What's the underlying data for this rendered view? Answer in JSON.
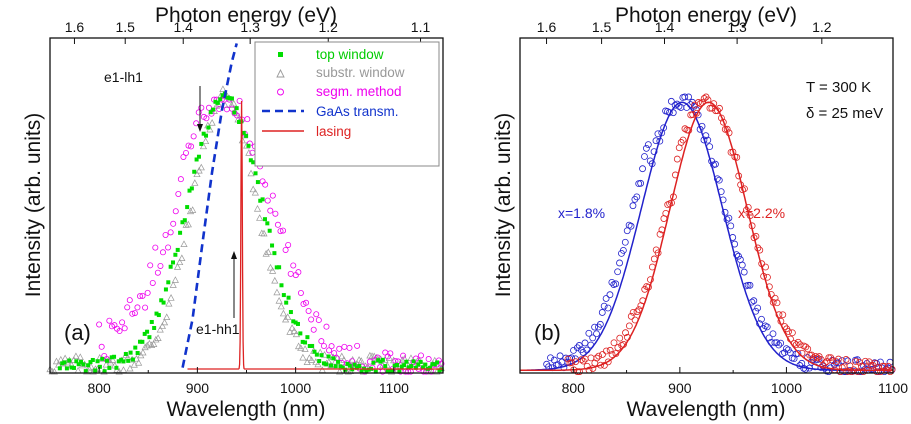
{
  "chart_data": [
    {
      "type": "scatter",
      "panel_label": "(a)",
      "xlabel": "Wavelength (nm)",
      "ylabel": "Intensity (arb. units)",
      "top_xlabel": "Photon energy (eV)",
      "xlim": [
        750,
        1150
      ],
      "ylim": [
        0,
        1.25
      ],
      "x_ticks": [
        800,
        900,
        1000,
        1100
      ],
      "x_tick_labels": [
        "800",
        "900",
        "1000",
        "1100"
      ],
      "top_ticks_ev": [
        1.6,
        1.5,
        1.4,
        1.3,
        1.2,
        1.1
      ],
      "top_tick_labels": [
        "1.6",
        "1.5",
        "1.4",
        "1.3",
        "1.2",
        "1.1"
      ],
      "legend_position": "top-right",
      "series": [
        {
          "name": "top window",
          "marker": "filled-square",
          "color": "#00dd00",
          "x_range": [
            760,
            1150
          ],
          "peak_nm": 928,
          "sigma_nm": 38
        },
        {
          "name": "substr. window",
          "marker": "open-triangle",
          "color": "#999999",
          "x_range": [
            750,
            1150
          ],
          "peak_nm": 928,
          "sigma_nm": 33
        },
        {
          "name": "segm. method",
          "marker": "open-circle",
          "color": "#ee00ee",
          "x_range": [
            800,
            1150
          ],
          "peak_nm": 925,
          "sigma_nm": 50
        },
        {
          "name": "GaAs transm.",
          "marker": "dashed-line",
          "color": "#1133cc",
          "x": [
            885,
            895,
            905,
            915,
            925,
            935,
            940
          ],
          "y": [
            0.02,
            0.2,
            0.48,
            0.75,
            0.98,
            1.16,
            1.23
          ]
        },
        {
          "name": "lasing",
          "marker": "line",
          "color": "#dd2222",
          "x_range": [
            890,
            1150
          ],
          "peak_nm": 945,
          "peak_value": 1.0
        }
      ],
      "annotations": [
        {
          "text": "e1-lh1",
          "x": 905,
          "arrow_target_y": 0.88
        },
        {
          "text": "e1-hh1",
          "x": 930,
          "arrow_target_y": 0.42
        }
      ]
    },
    {
      "type": "scatter",
      "panel_label": "(b)",
      "xlabel": "Wavelength (nm)",
      "ylabel": "Intensity (arb. units)",
      "top_xlabel": "Photon energy (eV)",
      "xlim": [
        750,
        1100
      ],
      "ylim": [
        0,
        1.25
      ],
      "x_ticks": [
        800,
        900,
        1000,
        1100
      ],
      "x_tick_labels": [
        "800",
        "900",
        "1000",
        "1100"
      ],
      "top_ticks_ev": [
        1.6,
        1.5,
        1.4,
        1.3,
        1.2
      ],
      "top_tick_labels": [
        "1.6",
        "1.5",
        "1.4",
        "1.3",
        "1.2"
      ],
      "info_lines": [
        "T = 300 K",
        "δ = 25 meV"
      ],
      "series": [
        {
          "name": "x=1.8%",
          "marker": "open-circle-with-fit-line",
          "color": "#2222cc",
          "x_range": [
            775,
            1100
          ],
          "peak_nm": 902,
          "sigma_nm": 40
        },
        {
          "name": "x=2.2%",
          "marker": "open-circle-with-fit-line",
          "color": "#dd2222",
          "x_range": [
            795,
            1100
          ],
          "peak_nm": 925,
          "sigma_nm": 38
        }
      ]
    }
  ]
}
